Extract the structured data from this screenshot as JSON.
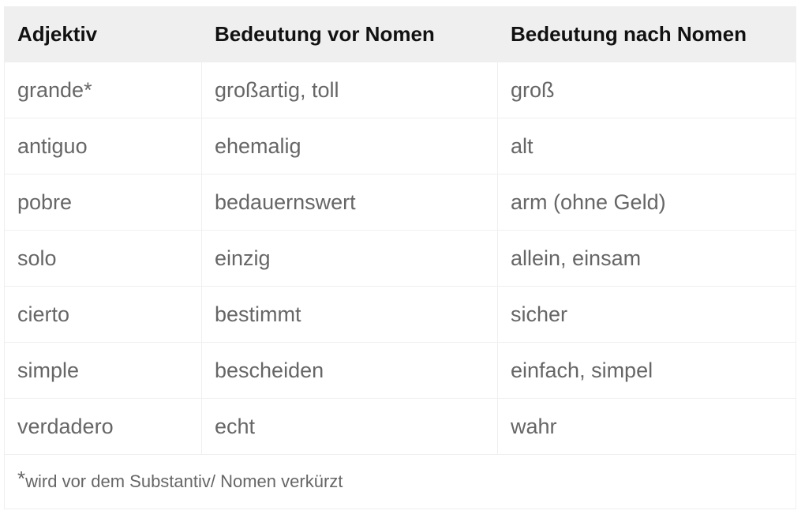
{
  "headers": [
    "Adjektiv",
    "Bedeutung vor Nomen",
    "Bedeutung nach Nomen"
  ],
  "rows": [
    [
      "grande*",
      "großartig, toll",
      "groß"
    ],
    [
      "antiguo",
      "ehemalig",
      "alt"
    ],
    [
      "pobre",
      "bedauernswert",
      "arm (ohne Geld)"
    ],
    [
      "solo",
      "einzig",
      "allein, einsam"
    ],
    [
      "cierto",
      "bestimmt",
      "sicher"
    ],
    [
      "simple",
      "bescheiden",
      "einfach, simpel"
    ],
    [
      "verdadero",
      "echt",
      "wahr"
    ]
  ],
  "footnote": {
    "marker": "*",
    "text": "wird vor dem Substantiv/ Nomen verkürzt"
  }
}
